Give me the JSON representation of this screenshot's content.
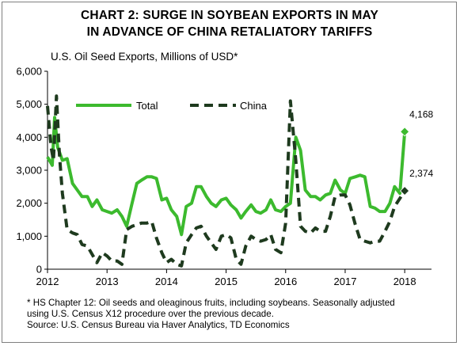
{
  "chart_data": {
    "type": "line",
    "title": [
      "CHART 2: SURGE IN SOYBEAN EXPORTS IN MAY",
      "IN ADVANCE OF CHINA RETALIATORY TARIFFS"
    ],
    "ylabel": "U.S. Oil Seed Exports, Millions of USD*",
    "ylim": [
      0,
      6000
    ],
    "yticks": [
      "0",
      "1,000",
      "2,000",
      "3,000",
      "4,000",
      "5,000",
      "6,000"
    ],
    "xlim": [
      2012,
      2018.45
    ],
    "xticks": [
      "2012",
      "2013",
      "2014",
      "2015",
      "2016",
      "2017",
      "2018"
    ],
    "legend": "top-left",
    "grid": false,
    "series": [
      {
        "name": "Total",
        "color": "#3cba2e",
        "style": "solid",
        "values": [
          [
            2012.0,
            3400
          ],
          [
            2012.08,
            3150
          ],
          [
            2012.12,
            4600
          ],
          [
            2012.17,
            3700
          ],
          [
            2012.25,
            3300
          ],
          [
            2012.33,
            3350
          ],
          [
            2012.42,
            2600
          ],
          [
            2012.5,
            2400
          ],
          [
            2012.58,
            2200
          ],
          [
            2012.67,
            2200
          ],
          [
            2012.75,
            1900
          ],
          [
            2012.83,
            2100
          ],
          [
            2012.92,
            1800
          ],
          [
            2013.0,
            1750
          ],
          [
            2013.08,
            1700
          ],
          [
            2013.17,
            1800
          ],
          [
            2013.25,
            1600
          ],
          [
            2013.33,
            1300
          ],
          [
            2013.42,
            2000
          ],
          [
            2013.5,
            2600
          ],
          [
            2013.58,
            2700
          ],
          [
            2013.67,
            2800
          ],
          [
            2013.75,
            2800
          ],
          [
            2013.83,
            2750
          ],
          [
            2013.92,
            2100
          ],
          [
            2014.0,
            2150
          ],
          [
            2014.08,
            1800
          ],
          [
            2014.17,
            1600
          ],
          [
            2014.25,
            1050
          ],
          [
            2014.33,
            1900
          ],
          [
            2014.42,
            2000
          ],
          [
            2014.5,
            2500
          ],
          [
            2014.58,
            2500
          ],
          [
            2014.67,
            2200
          ],
          [
            2014.75,
            2000
          ],
          [
            2014.83,
            1900
          ],
          [
            2014.92,
            2100
          ],
          [
            2015.0,
            2150
          ],
          [
            2015.08,
            1950
          ],
          [
            2015.17,
            1800
          ],
          [
            2015.25,
            1550
          ],
          [
            2015.33,
            1750
          ],
          [
            2015.42,
            1950
          ],
          [
            2015.5,
            1750
          ],
          [
            2015.58,
            1700
          ],
          [
            2015.67,
            1800
          ],
          [
            2015.75,
            2100
          ],
          [
            2015.83,
            1800
          ],
          [
            2015.92,
            1750
          ],
          [
            2016.0,
            1900
          ],
          [
            2016.08,
            2000
          ],
          [
            2016.17,
            4000
          ],
          [
            2016.25,
            3600
          ],
          [
            2016.33,
            2400
          ],
          [
            2016.42,
            2200
          ],
          [
            2016.5,
            2200
          ],
          [
            2016.58,
            2100
          ],
          [
            2016.67,
            2250
          ],
          [
            2016.75,
            2300
          ],
          [
            2016.83,
            2700
          ],
          [
            2016.92,
            2400
          ],
          [
            2017.0,
            2300
          ],
          [
            2017.08,
            2750
          ],
          [
            2017.17,
            2800
          ],
          [
            2017.25,
            2850
          ],
          [
            2017.33,
            2800
          ],
          [
            2017.42,
            1900
          ],
          [
            2017.5,
            1850
          ],
          [
            2017.58,
            1750
          ],
          [
            2017.67,
            1750
          ],
          [
            2017.75,
            2000
          ],
          [
            2017.83,
            2500
          ],
          [
            2017.92,
            2300
          ],
          [
            2018.0,
            4168
          ]
        ]
      },
      {
        "name": "China",
        "color": "#1e3a1e",
        "style": "dashed",
        "values": [
          [
            2012.0,
            4950
          ],
          [
            2012.06,
            3700
          ],
          [
            2012.1,
            3300
          ],
          [
            2012.15,
            5250
          ],
          [
            2012.2,
            3500
          ],
          [
            2012.25,
            2300
          ],
          [
            2012.33,
            1200
          ],
          [
            2012.42,
            1100
          ],
          [
            2012.5,
            1050
          ],
          [
            2012.58,
            750
          ],
          [
            2012.67,
            700
          ],
          [
            2012.75,
            450
          ],
          [
            2012.83,
            200
          ],
          [
            2012.92,
            500
          ],
          [
            2013.0,
            400
          ],
          [
            2013.08,
            250
          ],
          [
            2013.17,
            250
          ],
          [
            2013.25,
            150
          ],
          [
            2013.33,
            1200
          ],
          [
            2013.42,
            1300
          ],
          [
            2013.5,
            1350
          ],
          [
            2013.58,
            1400
          ],
          [
            2013.67,
            1400
          ],
          [
            2013.75,
            1450
          ],
          [
            2013.83,
            950
          ],
          [
            2013.92,
            500
          ],
          [
            2014.0,
            200
          ],
          [
            2014.08,
            300
          ],
          [
            2014.17,
            150
          ],
          [
            2014.25,
            100
          ],
          [
            2014.33,
            800
          ],
          [
            2014.42,
            1050
          ],
          [
            2014.5,
            1250
          ],
          [
            2014.58,
            1300
          ],
          [
            2014.67,
            1000
          ],
          [
            2014.75,
            800
          ],
          [
            2014.83,
            600
          ],
          [
            2014.92,
            1000
          ],
          [
            2015.0,
            1050
          ],
          [
            2015.08,
            950
          ],
          [
            2015.17,
            300
          ],
          [
            2015.25,
            150
          ],
          [
            2015.33,
            700
          ],
          [
            2015.42,
            1000
          ],
          [
            2015.5,
            900
          ],
          [
            2015.58,
            850
          ],
          [
            2015.67,
            900
          ],
          [
            2015.75,
            1050
          ],
          [
            2015.83,
            600
          ],
          [
            2015.92,
            500
          ],
          [
            2016.0,
            1400
          ],
          [
            2016.08,
            5100
          ],
          [
            2016.17,
            3300
          ],
          [
            2016.25,
            1300
          ],
          [
            2016.33,
            1150
          ],
          [
            2016.42,
            1100
          ],
          [
            2016.5,
            1250
          ],
          [
            2016.58,
            1150
          ],
          [
            2016.67,
            1150
          ],
          [
            2016.75,
            1600
          ],
          [
            2016.83,
            2200
          ],
          [
            2016.92,
            2250
          ],
          [
            2017.0,
            2250
          ],
          [
            2017.08,
            1950
          ],
          [
            2017.17,
            1350
          ],
          [
            2017.25,
            900
          ],
          [
            2017.33,
            850
          ],
          [
            2017.42,
            800
          ],
          [
            2017.5,
            850
          ],
          [
            2017.58,
            850
          ],
          [
            2017.67,
            1150
          ],
          [
            2017.75,
            1450
          ],
          [
            2017.83,
            1900
          ],
          [
            2018.0,
            2374
          ]
        ]
      }
    ],
    "annotations": [
      {
        "series": "Total",
        "x": 2018.0,
        "y": 4168,
        "label": "4,168",
        "marker": "diamond"
      },
      {
        "series": "China",
        "x": 2018.0,
        "y": 2374,
        "label": "2,374",
        "marker": "diamond"
      }
    ],
    "footnote": [
      "* HS Chapter 12: Oil seeds and oleaginous fruits, including soybeans. Seasonally adjusted",
      "using U.S. Census X12 procedure over the previous decade.",
      "Source: U.S. Census Bureau via Haver Analytics, TD Economics"
    ]
  }
}
